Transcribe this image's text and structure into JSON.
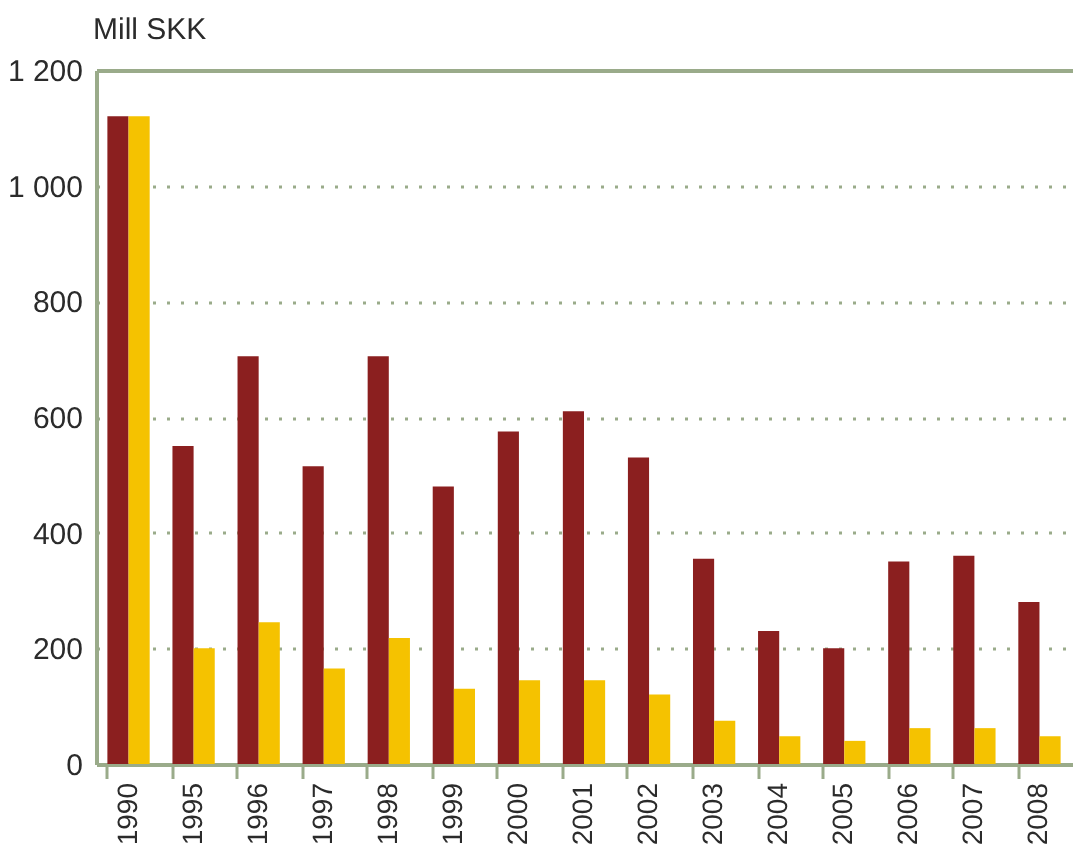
{
  "chart_data": {
    "type": "bar",
    "ylabel": "Mill SKK",
    "categories": [
      "1990",
      "1995",
      "1996",
      "1997",
      "1998",
      "1999",
      "2000",
      "2001",
      "2002",
      "2003",
      "2004",
      "2005",
      "2006",
      "2007",
      "2008"
    ],
    "series": [
      {
        "color": "#8b1f1f",
        "values": [
          1120,
          550,
          705,
          515,
          705,
          480,
          575,
          610,
          530,
          355,
          230,
          200,
          350,
          360,
          280
        ]
      },
      {
        "color": "#f5c200",
        "values": [
          1120,
          200,
          245,
          165,
          218,
          130,
          145,
          145,
          120,
          75,
          48,
          40,
          62,
          62,
          48
        ]
      }
    ],
    "ylim": [
      0,
      1200
    ],
    "yticks": [
      0,
      200,
      400,
      600,
      800,
      {
        "value": 1000,
        "label": "1 000"
      },
      {
        "value": 1200,
        "label": "1 200"
      }
    ],
    "grid": "y",
    "legend": false
  }
}
